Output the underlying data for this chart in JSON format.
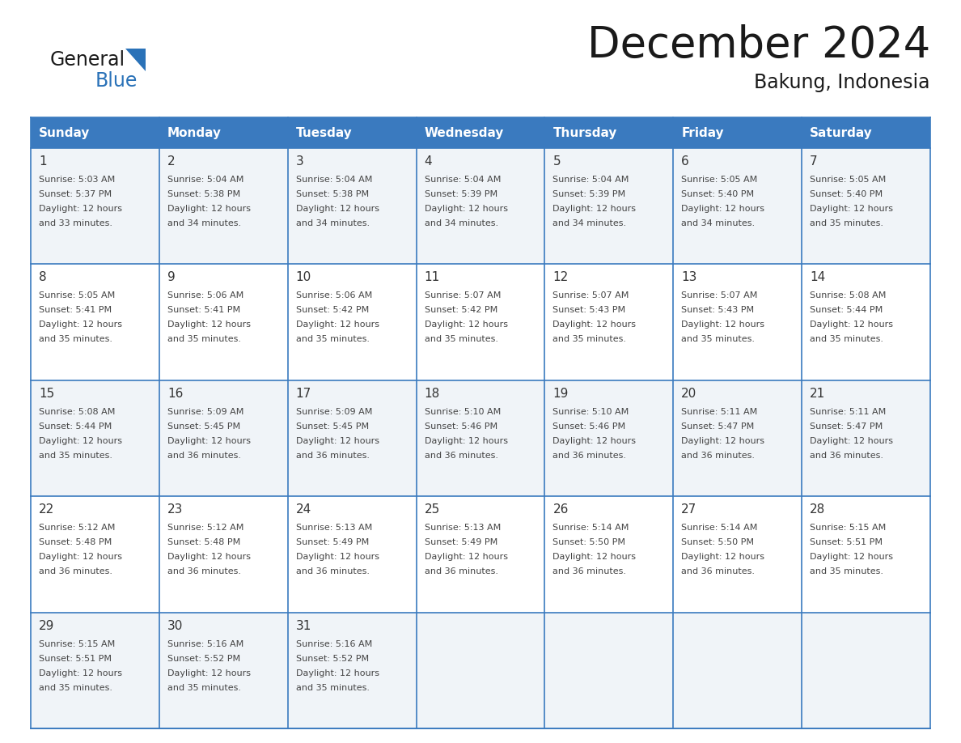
{
  "title": "December 2024",
  "subtitle": "Bakung, Indonesia",
  "header_bg": "#3a7abf",
  "header_text_color": "#ffffff",
  "cell_bg_odd": "#f0f4f8",
  "cell_bg_even": "#ffffff",
  "days_of_week": [
    "Sunday",
    "Monday",
    "Tuesday",
    "Wednesday",
    "Thursday",
    "Friday",
    "Saturday"
  ],
  "weeks": [
    [
      {
        "day": "1",
        "sunrise": "5:03 AM",
        "sunset": "5:37 PM",
        "daylight": "12 hours\nand 33 minutes."
      },
      {
        "day": "2",
        "sunrise": "5:04 AM",
        "sunset": "5:38 PM",
        "daylight": "12 hours\nand 34 minutes."
      },
      {
        "day": "3",
        "sunrise": "5:04 AM",
        "sunset": "5:38 PM",
        "daylight": "12 hours\nand 34 minutes."
      },
      {
        "day": "4",
        "sunrise": "5:04 AM",
        "sunset": "5:39 PM",
        "daylight": "12 hours\nand 34 minutes."
      },
      {
        "day": "5",
        "sunrise": "5:04 AM",
        "sunset": "5:39 PM",
        "daylight": "12 hours\nand 34 minutes."
      },
      {
        "day": "6",
        "sunrise": "5:05 AM",
        "sunset": "5:40 PM",
        "daylight": "12 hours\nand 34 minutes."
      },
      {
        "day": "7",
        "sunrise": "5:05 AM",
        "sunset": "5:40 PM",
        "daylight": "12 hours\nand 35 minutes."
      }
    ],
    [
      {
        "day": "8",
        "sunrise": "5:05 AM",
        "sunset": "5:41 PM",
        "daylight": "12 hours\nand 35 minutes."
      },
      {
        "day": "9",
        "sunrise": "5:06 AM",
        "sunset": "5:41 PM",
        "daylight": "12 hours\nand 35 minutes."
      },
      {
        "day": "10",
        "sunrise": "5:06 AM",
        "sunset": "5:42 PM",
        "daylight": "12 hours\nand 35 minutes."
      },
      {
        "day": "11",
        "sunrise": "5:07 AM",
        "sunset": "5:42 PM",
        "daylight": "12 hours\nand 35 minutes."
      },
      {
        "day": "12",
        "sunrise": "5:07 AM",
        "sunset": "5:43 PM",
        "daylight": "12 hours\nand 35 minutes."
      },
      {
        "day": "13",
        "sunrise": "5:07 AM",
        "sunset": "5:43 PM",
        "daylight": "12 hours\nand 35 minutes."
      },
      {
        "day": "14",
        "sunrise": "5:08 AM",
        "sunset": "5:44 PM",
        "daylight": "12 hours\nand 35 minutes."
      }
    ],
    [
      {
        "day": "15",
        "sunrise": "5:08 AM",
        "sunset": "5:44 PM",
        "daylight": "12 hours\nand 35 minutes."
      },
      {
        "day": "16",
        "sunrise": "5:09 AM",
        "sunset": "5:45 PM",
        "daylight": "12 hours\nand 36 minutes."
      },
      {
        "day": "17",
        "sunrise": "5:09 AM",
        "sunset": "5:45 PM",
        "daylight": "12 hours\nand 36 minutes."
      },
      {
        "day": "18",
        "sunrise": "5:10 AM",
        "sunset": "5:46 PM",
        "daylight": "12 hours\nand 36 minutes."
      },
      {
        "day": "19",
        "sunrise": "5:10 AM",
        "sunset": "5:46 PM",
        "daylight": "12 hours\nand 36 minutes."
      },
      {
        "day": "20",
        "sunrise": "5:11 AM",
        "sunset": "5:47 PM",
        "daylight": "12 hours\nand 36 minutes."
      },
      {
        "day": "21",
        "sunrise": "5:11 AM",
        "sunset": "5:47 PM",
        "daylight": "12 hours\nand 36 minutes."
      }
    ],
    [
      {
        "day": "22",
        "sunrise": "5:12 AM",
        "sunset": "5:48 PM",
        "daylight": "12 hours\nand 36 minutes."
      },
      {
        "day": "23",
        "sunrise": "5:12 AM",
        "sunset": "5:48 PM",
        "daylight": "12 hours\nand 36 minutes."
      },
      {
        "day": "24",
        "sunrise": "5:13 AM",
        "sunset": "5:49 PM",
        "daylight": "12 hours\nand 36 minutes."
      },
      {
        "day": "25",
        "sunrise": "5:13 AM",
        "sunset": "5:49 PM",
        "daylight": "12 hours\nand 36 minutes."
      },
      {
        "day": "26",
        "sunrise": "5:14 AM",
        "sunset": "5:50 PM",
        "daylight": "12 hours\nand 36 minutes."
      },
      {
        "day": "27",
        "sunrise": "5:14 AM",
        "sunset": "5:50 PM",
        "daylight": "12 hours\nand 36 minutes."
      },
      {
        "day": "28",
        "sunrise": "5:15 AM",
        "sunset": "5:51 PM",
        "daylight": "12 hours\nand 35 minutes."
      }
    ],
    [
      {
        "day": "29",
        "sunrise": "5:15 AM",
        "sunset": "5:51 PM",
        "daylight": "12 hours\nand 35 minutes."
      },
      {
        "day": "30",
        "sunrise": "5:16 AM",
        "sunset": "5:52 PM",
        "daylight": "12 hours\nand 35 minutes."
      },
      {
        "day": "31",
        "sunrise": "5:16 AM",
        "sunset": "5:52 PM",
        "daylight": "12 hours\nand 35 minutes."
      },
      null,
      null,
      null,
      null
    ]
  ],
  "logo_general_color": "#1a1a1a",
  "logo_blue_color": "#2a72b8",
  "title_color": "#1a1a1a",
  "subtitle_color": "#1a1a1a",
  "grid_line_color": "#3a7abf",
  "cell_text_color": "#444444",
  "day_num_color": "#333333",
  "separator_color": "#3a7abf"
}
